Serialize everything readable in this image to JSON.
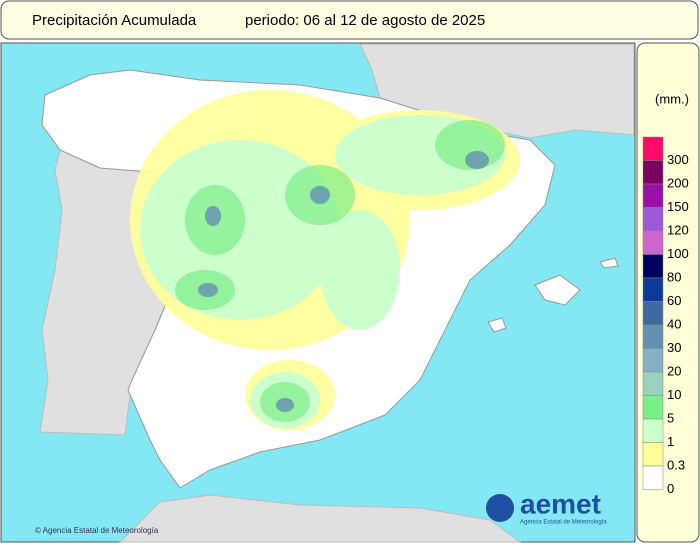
{
  "header": {
    "title": "Precipitación Acumulada",
    "period": "periodo: 06 al 12 de agosto de 2025"
  },
  "legend": {
    "unit": "(mm.)",
    "items": [
      {
        "label": "300",
        "color": "#ff0a6a"
      },
      {
        "label": "200",
        "color": "#7a0062"
      },
      {
        "label": "150",
        "color": "#9a10a8"
      },
      {
        "label": "120",
        "color": "#9a5ad8"
      },
      {
        "label": "100",
        "color": "#cc66cc"
      },
      {
        "label": "80",
        "color": "#00005e"
      },
      {
        "label": "60",
        "color": "#0a3a9a"
      },
      {
        "label": "40",
        "color": "#3a6a9e"
      },
      {
        "label": "30",
        "color": "#6690b0"
      },
      {
        "label": "20",
        "color": "#88b0c4"
      },
      {
        "label": "10",
        "color": "#9cd0c0"
      },
      {
        "label": "5",
        "color": "#7cee88"
      },
      {
        "label": "1",
        "color": "#ccffcc"
      },
      {
        "label": "0.3",
        "color": "#ffff99"
      },
      {
        "label": "0",
        "color": "#ffffff"
      }
    ]
  },
  "credit": "© Agencia Estatal de Meteorología",
  "logo": {
    "name": "aemet",
    "subtitle": "Agencia Estatal de Meteorología"
  }
}
